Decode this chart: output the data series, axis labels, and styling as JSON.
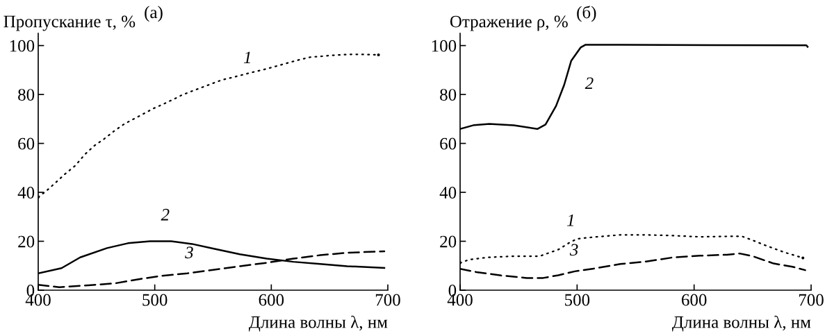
{
  "chart_data": [
    {
      "type": "line",
      "title": "(a)",
      "ylabel": "Пропускание τ, %",
      "xlabel": "Длина волны λ, нм",
      "xlim": [
        400,
        700
      ],
      "ylim": [
        0,
        105
      ],
      "xticks": [
        400,
        500,
        600,
        700
      ],
      "yticks": [
        0,
        20,
        40,
        60,
        80,
        100
      ],
      "grid": false,
      "legend": false,
      "series": [
        {
          "color": "#000000",
          "line_style": "dotted",
          "x": [
            400,
            407,
            415,
            423,
            432,
            440,
            448,
            457,
            465,
            474,
            482,
            490,
            499,
            507,
            516,
            523,
            532,
            540,
            550,
            558,
            567,
            575,
            583,
            592,
            600,
            609,
            617,
            625,
            634,
            643,
            652,
            660,
            667,
            676,
            692
          ],
          "values": [
            38,
            40.6,
            44,
            47.5,
            51,
            55.5,
            59,
            62,
            65,
            68,
            70,
            72,
            74.3,
            76,
            78,
            79.7,
            81.4,
            82.8,
            84.6,
            86,
            87,
            88,
            89,
            90,
            91,
            92.2,
            93.3,
            94.3,
            95.3,
            95.6,
            96,
            96.2,
            96.4,
            96.4,
            96.2
          ]
        },
        {
          "color": "#000000",
          "line_style": "solid",
          "x": [
            400,
            420,
            436,
            459,
            477,
            496,
            514,
            532,
            550,
            573,
            596,
            619,
            642,
            665,
            697
          ],
          "values": [
            6.9,
            9,
            13.4,
            17.2,
            19.2,
            20,
            20,
            18.9,
            17,
            14.7,
            12.9,
            11.6,
            10.7,
            9.8,
            9.1
          ]
        },
        {
          "color": "#000000",
          "line_style": "dashed",
          "x": [
            400,
            418,
            443,
            466,
            489,
            505,
            528,
            550,
            573,
            596,
            619,
            642,
            665,
            697
          ],
          "values": [
            2.2,
            1.2,
            2,
            2.8,
            4.7,
            5.8,
            6.9,
            8.3,
            9.8,
            11.2,
            12.9,
            14.3,
            15.3,
            15.9
          ]
        }
      ],
      "annotations": [
        {
          "text": "1",
          "x": 583,
          "y": 89
        },
        {
          "text": "2",
          "x": 514,
          "y": 20
        },
        {
          "text": "3",
          "x": 528,
          "y": 6.9
        }
      ]
    },
    {
      "type": "line",
      "title": "(б)",
      "ylabel": "Отражение ρ, %",
      "xlabel": "Длина волны λ, нм",
      "xlim": [
        400,
        700
      ],
      "ylim": [
        0,
        105
      ],
      "xticks": [
        400,
        500,
        600,
        700
      ],
      "yticks": [
        0,
        20,
        40,
        60,
        80,
        100
      ],
      "grid": false,
      "legend": false,
      "series": [
        {
          "color": "#000000",
          "line_style": "dotted",
          "x": [
            400,
            408,
            423,
            446,
            468,
            484,
            493,
            500,
            514,
            537,
            559,
            582,
            605,
            628,
            641,
            650,
            661,
            677,
            693
          ],
          "values": [
            11.2,
            12.5,
            13.4,
            13.9,
            13.9,
            16.6,
            19.3,
            21,
            21.7,
            22.6,
            22.6,
            22.3,
            21.8,
            22,
            22,
            20.4,
            18.3,
            15.5,
            13.2
          ]
        },
        {
          "color": "#000000",
          "line_style": "solid",
          "x": [
            400,
            412,
            425,
            446,
            466,
            473,
            482,
            489,
            495,
            503,
            507,
            537,
            696,
            697
          ],
          "values": [
            65.9,
            67.5,
            68,
            67.4,
            65.9,
            67.7,
            75.3,
            84,
            93.8,
            99.2,
            100.3,
            100.3,
            100.1,
            99.5
          ]
        },
        {
          "color": "#000000",
          "line_style": "dashed",
          "x": [
            400,
            414,
            435,
            457,
            471,
            484,
            498,
            514,
            537,
            559,
            582,
            605,
            628,
            639,
            650,
            668,
            684,
            695
          ],
          "values": [
            8.7,
            7.4,
            6,
            5,
            5,
            6.1,
            7.7,
            8.8,
            10.7,
            11.7,
            13.4,
            14.1,
            14.5,
            15,
            13.9,
            10.9,
            9.6,
            8.2
          ]
        }
      ],
      "annotations": [
        {
          "text": "1",
          "x": 493,
          "y": 19.3
        },
        {
          "text": "2",
          "x": 489,
          "y": 84
        },
        {
          "text": "3",
          "x": 514,
          "y": 8.8
        }
      ]
    }
  ]
}
